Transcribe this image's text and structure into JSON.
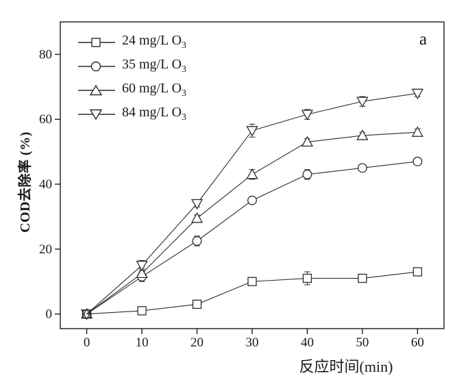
{
  "panel_label": "a",
  "chart_data": {
    "type": "line",
    "title": "",
    "xlabel": "反应时间(min)",
    "ylabel": "COD去除率 (%)",
    "xlim": [
      -4.8,
      64.8
    ],
    "ylim": [
      -4.5,
      90
    ],
    "x_ticks": [
      0,
      10,
      20,
      30,
      40,
      50,
      60
    ],
    "y_ticks": [
      0,
      20,
      40,
      60,
      80
    ],
    "grid": false,
    "legend_position": "upper-left",
    "axis_color": "#1a1a1a",
    "line_color": "#2b2b2b",
    "marker_fill": "#ffffff",
    "x": [
      0,
      10,
      20,
      30,
      40,
      50,
      60
    ],
    "series": [
      {
        "name": "24 mg/L O3",
        "legend_prefix": "24 mg/L O",
        "legend_sub": "3",
        "marker": "square",
        "values": [
          0,
          1,
          3,
          10,
          11,
          11,
          13
        ],
        "errors": [
          0,
          0.5,
          0.5,
          0.5,
          2,
          1,
          1
        ]
      },
      {
        "name": "35 mg/L O3",
        "legend_prefix": "35 mg/L O",
        "legend_sub": "3",
        "marker": "circle",
        "values": [
          0,
          11.5,
          22.5,
          35,
          43,
          45,
          47
        ],
        "errors": [
          0,
          1.5,
          1.5,
          1,
          1.5,
          1,
          1
        ]
      },
      {
        "name": "60 mg/L O3",
        "legend_prefix": "60 mg/L O",
        "legend_sub": "3",
        "marker": "triangle-up",
        "values": [
          0,
          12.5,
          29.5,
          43,
          53,
          55,
          56
        ],
        "errors": [
          0,
          1.5,
          1,
          1.5,
          1,
          1,
          1
        ]
      },
      {
        "name": "84 mg/L O3",
        "legend_prefix": "84 mg/L O",
        "legend_sub": "3",
        "marker": "triangle-down",
        "values": [
          0,
          15,
          34,
          56.5,
          61.5,
          65.5,
          68
        ],
        "errors": [
          0,
          1.5,
          1,
          2,
          1.5,
          1.5,
          1
        ]
      }
    ]
  }
}
